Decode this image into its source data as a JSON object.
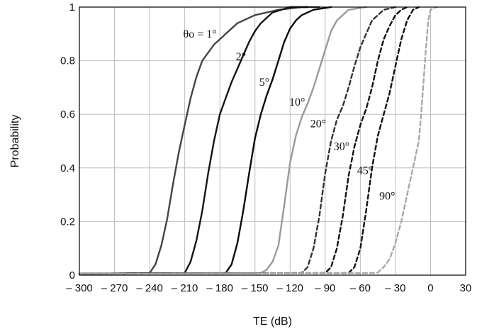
{
  "chart_data": {
    "type": "line",
    "title": "",
    "xlabel": "TE (dB)",
    "ylabel": "Probability",
    "xlim": [
      -300,
      30
    ],
    "ylim": [
      0,
      1
    ],
    "grid": true,
    "x_ticks": [
      -300,
      -270,
      -240,
      -210,
      -180,
      -150,
      -120,
      -90,
      -60,
      -30,
      0,
      30
    ],
    "x_tick_labels": [
      "– 300",
      "– 270",
      "– 240",
      "– 210",
      "– 180",
      "– 150",
      "– 120",
      "– 90",
      "– 60",
      "– 30",
      "0",
      "30"
    ],
    "y_ticks": [
      0,
      0.2,
      0.4,
      0.6,
      0.8,
      1
    ],
    "y_tick_labels": [
      "0",
      "0.2",
      "0.4",
      "0.6",
      "0.8",
      "1"
    ],
    "series": [
      {
        "name": "θo = 1°",
        "color": "#444444",
        "dash": "solid",
        "x": [
          -300,
          -240,
          -235,
          -230,
          -225,
          -220,
          -215,
          -210,
          -205,
          -200,
          -195,
          -190,
          -185,
          -180,
          -175,
          -165,
          -150,
          -130,
          -110,
          -95
        ],
        "y": [
          0.005,
          0.008,
          0.04,
          0.11,
          0.21,
          0.34,
          0.46,
          0.56,
          0.66,
          0.74,
          0.8,
          0.83,
          0.86,
          0.88,
          0.9,
          0.94,
          0.97,
          0.99,
          1.0,
          1.0
        ]
      },
      {
        "name": "2°",
        "color": "#151515",
        "dash": "solid",
        "x": [
          -300,
          -210,
          -205,
          -200,
          -195,
          -190,
          -185,
          -180,
          -175,
          -170,
          -165,
          -160,
          -155,
          -150,
          -145,
          -135,
          -120,
          -105
        ],
        "y": [
          0.005,
          0.008,
          0.05,
          0.13,
          0.24,
          0.38,
          0.5,
          0.6,
          0.66,
          0.72,
          0.77,
          0.82,
          0.87,
          0.91,
          0.94,
          0.98,
          1.0,
          1.0
        ]
      },
      {
        "name": "5°",
        "color": "#0a0a0a",
        "dash": "solid",
        "x": [
          -300,
          -175,
          -170,
          -165,
          -160,
          -155,
          -150,
          -145,
          -140,
          -135,
          -130,
          -125,
          -120,
          -115,
          -110,
          -100,
          -85
        ],
        "y": [
          0.005,
          0.008,
          0.04,
          0.12,
          0.24,
          0.38,
          0.51,
          0.6,
          0.67,
          0.73,
          0.8,
          0.87,
          0.92,
          0.95,
          0.97,
          0.99,
          1.0
        ]
      },
      {
        "name": "10°",
        "color": "#9a9a9a",
        "dash": "solid",
        "x": [
          -300,
          -145,
          -140,
          -135,
          -130,
          -125,
          -120,
          -115,
          -110,
          -105,
          -100,
          -95,
          -90,
          -85,
          -80,
          -70,
          -55
        ],
        "y": [
          0.005,
          0.008,
          0.02,
          0.05,
          0.11,
          0.26,
          0.42,
          0.52,
          0.59,
          0.64,
          0.7,
          0.77,
          0.84,
          0.91,
          0.95,
          0.99,
          1.0
        ]
      },
      {
        "name": "20°",
        "color": "#333333",
        "dash": "dashed",
        "x": [
          -300,
          -110,
          -105,
          -100,
          -95,
          -90,
          -85,
          -80,
          -75,
          -70,
          -65,
          -60,
          -55,
          -50,
          -45,
          -40,
          -30
        ],
        "y": [
          0.005,
          0.008,
          0.03,
          0.1,
          0.22,
          0.38,
          0.5,
          0.58,
          0.63,
          0.7,
          0.78,
          0.85,
          0.9,
          0.95,
          0.97,
          0.99,
          1.0
        ]
      },
      {
        "name": "30°",
        "color": "#111111",
        "dash": "dashed",
        "x": [
          -300,
          -90,
          -85,
          -80,
          -75,
          -70,
          -65,
          -60,
          -55,
          -50,
          -45,
          -40,
          -35,
          -30,
          -25,
          -20
        ],
        "y": [
          0.005,
          0.008,
          0.03,
          0.1,
          0.22,
          0.37,
          0.48,
          0.56,
          0.62,
          0.7,
          0.8,
          0.88,
          0.93,
          0.97,
          0.99,
          1.0
        ]
      },
      {
        "name": "45°",
        "color": "#111111",
        "dash": "dashed",
        "x": [
          -300,
          -70,
          -65,
          -60,
          -55,
          -50,
          -45,
          -40,
          -35,
          -30,
          -25,
          -20,
          -15,
          -10
        ],
        "y": [
          0.005,
          0.008,
          0.03,
          0.1,
          0.24,
          0.4,
          0.52,
          0.6,
          0.68,
          0.78,
          0.88,
          0.95,
          0.99,
          1.0
        ]
      },
      {
        "name": "90°",
        "color": "#a8a8a8",
        "dash": "dashed",
        "x": [
          -300,
          -50,
          -45,
          -40,
          -35,
          -30,
          -25,
          -20,
          -15,
          -10,
          -8,
          -6,
          -4,
          -2,
          0,
          5
        ],
        "y": [
          0.005,
          0.008,
          0.01,
          0.03,
          0.06,
          0.12,
          0.2,
          0.3,
          0.4,
          0.5,
          0.6,
          0.72,
          0.84,
          0.95,
          0.99,
          1.0
        ]
      }
    ],
    "labels": [
      {
        "text": "θo = 1°",
        "x": -197,
        "y": 0.9
      },
      {
        "text": "2°",
        "x": -162,
        "y": 0.815
      },
      {
        "text": "5°",
        "x": -142,
        "y": 0.72
      },
      {
        "text": "10°",
        "x": -114,
        "y": 0.645
      },
      {
        "text": "20°",
        "x": -96,
        "y": 0.565
      },
      {
        "text": "30°",
        "x": -76,
        "y": 0.48
      },
      {
        "text": "45°",
        "x": -56,
        "y": 0.39
      },
      {
        "text": "90°",
        "x": -37,
        "y": 0.295
      }
    ]
  }
}
